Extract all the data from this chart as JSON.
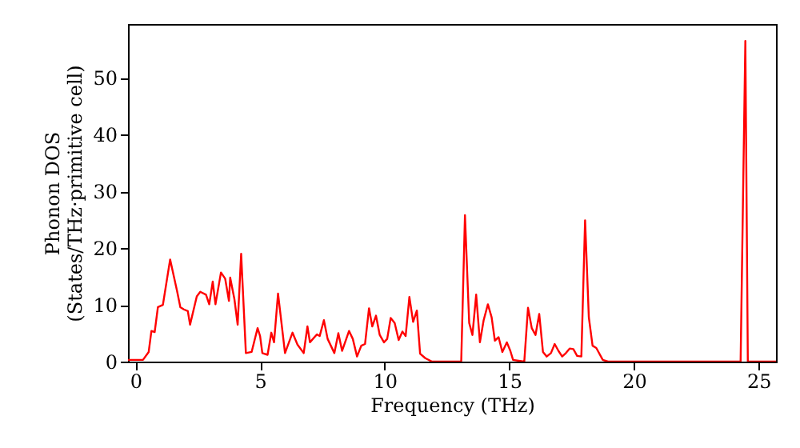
{
  "chart_data": {
    "type": "line",
    "xlabel": "Frequency (THz)",
    "ylabel": "Phonon DOS\n(States/THz·primitive cell)",
    "xlim": [
      -0.3,
      25.7
    ],
    "ylim": [
      0,
      59.5
    ],
    "xticks": [
      0,
      5,
      10,
      15,
      20,
      25
    ],
    "yticks": [
      0,
      10,
      20,
      30,
      40,
      50
    ],
    "grid": false,
    "marker": "none",
    "line_style": "solid",
    "series": [
      {
        "color": "#ff0000",
        "x": [
          -0.3,
          0.3,
          0.53,
          0.64,
          0.77,
          0.9,
          1.1,
          1.39,
          1.67,
          1.8,
          1.94,
          2.1,
          2.19,
          2.46,
          2.6,
          2.83,
          2.96,
          3.1,
          3.21,
          3.43,
          3.6,
          3.75,
          3.8,
          3.97,
          4.1,
          4.24,
          4.43,
          4.66,
          4.9,
          5.0,
          5.09,
          5.3,
          5.45,
          5.56,
          5.72,
          6.0,
          6.3,
          6.5,
          6.75,
          6.9,
          7.0,
          7.28,
          7.39,
          7.56,
          7.71,
          7.98,
          8.14,
          8.29,
          8.57,
          8.72,
          8.89,
          9.06,
          9.21,
          9.37,
          9.5,
          9.65,
          9.8,
          9.97,
          10.1,
          10.24,
          10.4,
          10.56,
          10.71,
          10.84,
          10.99,
          11.14,
          11.29,
          11.42,
          11.63,
          11.9,
          13.07,
          13.22,
          13.39,
          13.52,
          13.67,
          13.82,
          13.97,
          14.14,
          14.29,
          14.42,
          14.57,
          14.72,
          14.9,
          15.04,
          15.15,
          15.6,
          15.75,
          15.9,
          16.05,
          16.2,
          16.35,
          16.5,
          16.67,
          16.82,
          16.97,
          17.12,
          17.27,
          17.42,
          17.57,
          17.72,
          17.89,
          18.04,
          18.19,
          18.34,
          18.49,
          18.75,
          18.96,
          24.28,
          24.47,
          24.57,
          25.7
        ],
        "values": [
          0.3,
          0.3,
          1.7,
          5.4,
          5.2,
          9.6,
          10.0,
          18.0,
          12.4,
          9.6,
          9.2,
          8.9,
          6.5,
          11.5,
          12.3,
          11.8,
          10.1,
          14.1,
          10.1,
          15.7,
          14.6,
          10.7,
          14.8,
          11.0,
          6.5,
          19.0,
          1.5,
          1.7,
          5.9,
          4.5,
          1.5,
          1.2,
          5.1,
          3.4,
          12.0,
          1.5,
          5.1,
          3.0,
          1.5,
          6.2,
          3.4,
          4.8,
          4.5,
          7.3,
          4.0,
          1.5,
          5.0,
          1.9,
          5.4,
          4.0,
          0.9,
          2.8,
          3.1,
          9.4,
          6.2,
          8.1,
          4.7,
          3.4,
          4.0,
          7.7,
          6.8,
          3.8,
          5.3,
          4.5,
          11.4,
          7.0,
          9.0,
          1.4,
          0.6,
          0,
          0,
          25.8,
          6.8,
          4.7,
          11.8,
          3.4,
          7.3,
          10.1,
          7.8,
          3.7,
          4.3,
          1.7,
          3.4,
          1.9,
          0.3,
          0,
          9.5,
          5.9,
          4.7,
          8.4,
          1.7,
          0.9,
          1.5,
          3.1,
          1.9,
          0.9,
          1.5,
          2.3,
          2.2,
          1.0,
          0.9,
          24.9,
          7.8,
          2.8,
          2.4,
          0.3,
          0,
          0,
          56.5,
          0,
          0
        ]
      }
    ]
  }
}
